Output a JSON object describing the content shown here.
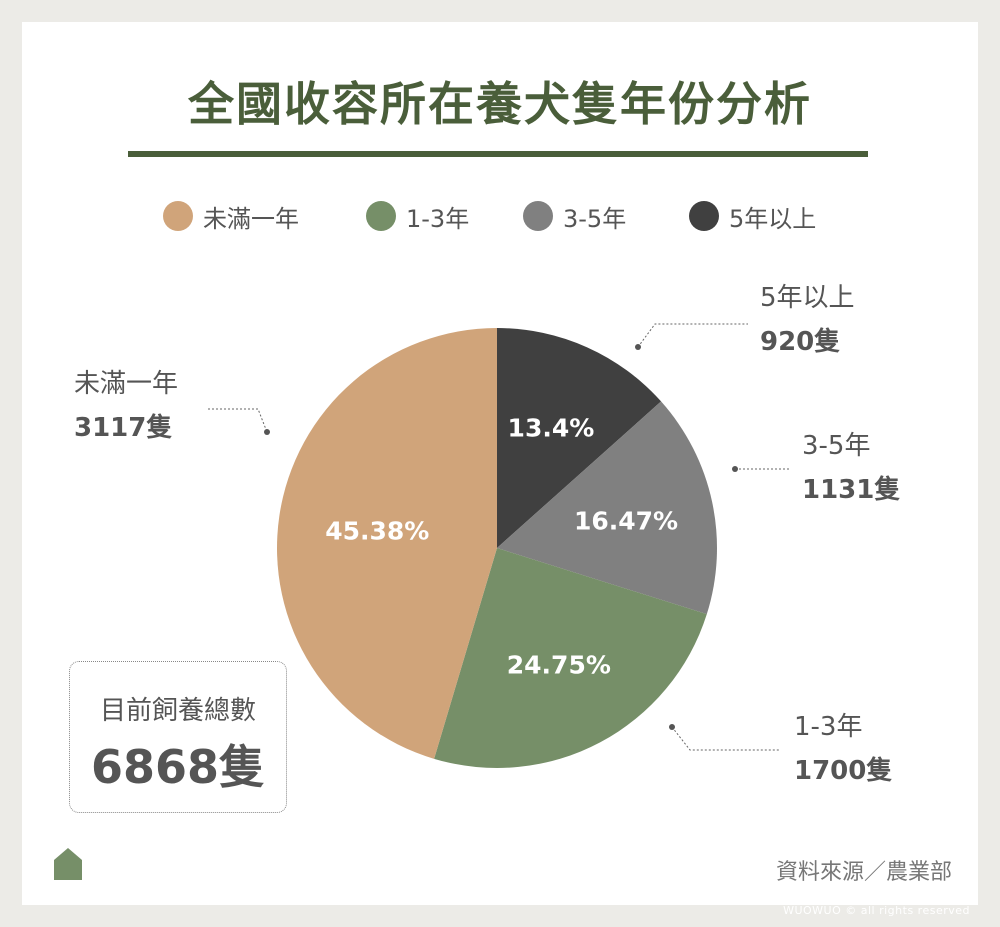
{
  "title": "全國收容所在養犬隻年份分析",
  "colors": {
    "under1": "#d0a47a",
    "y1to3": "#768f68",
    "y3to5": "#808080",
    "over5": "#404040",
    "title": "#4a5e3a"
  },
  "legend": [
    {
      "label": "未滿一年"
    },
    {
      "label": "1-3年"
    },
    {
      "label": "3-5年"
    },
    {
      "label": "5年以上"
    }
  ],
  "callouts": {
    "under1": {
      "label": "未滿一年",
      "count": "3117隻"
    },
    "over5": {
      "label": "5年以上",
      "count": "920隻"
    },
    "y3to5": {
      "label": "3-5年",
      "count": "1131隻"
    },
    "y1to3": {
      "label": "1-3年",
      "count": "1700隻"
    }
  },
  "total": {
    "label": "目前飼養總數",
    "value": "6868隻"
  },
  "source": "資料來源／農業部",
  "copyright": "WUOWUO © all rights reserved",
  "chart_data": {
    "type": "pie",
    "title": "全國收容所在養犬隻年份分析",
    "total": 6868,
    "slices": [
      {
        "name": "5年以上",
        "value": 920,
        "percent": 13.4,
        "label": "13.4%",
        "color": "#404040"
      },
      {
        "name": "3-5年",
        "value": 1131,
        "percent": 16.47,
        "label": "16.47%",
        "color": "#808080"
      },
      {
        "name": "1-3年",
        "value": 1700,
        "percent": 24.75,
        "label": "24.75%",
        "color": "#768f68"
      },
      {
        "name": "未滿一年",
        "value": 3117,
        "percent": 45.38,
        "label": "45.38%",
        "color": "#d0a47a"
      }
    ],
    "legend_position": "top"
  }
}
